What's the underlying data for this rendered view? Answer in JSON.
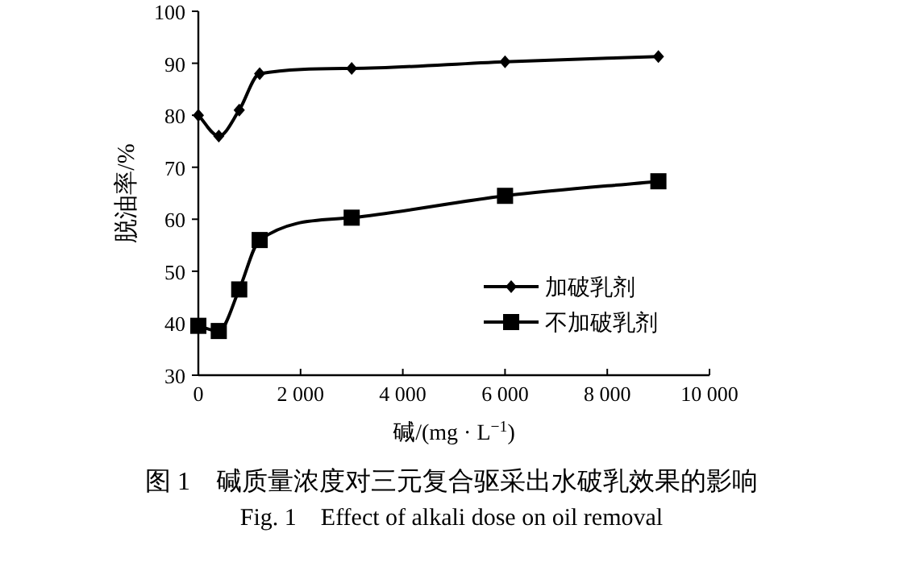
{
  "chart_data": {
    "type": "line",
    "xlabel": "碱/(mg · L$^{−1}$)",
    "ylabel": "脱油率/%",
    "x": [
      0,
      400,
      800,
      1200,
      3000,
      6000,
      9000
    ],
    "series": [
      {
        "name": "加破乳剂",
        "color": "#000000",
        "marker": "diamond",
        "values": [
          80,
          76,
          81,
          88,
          89,
          90.3,
          91.3
        ]
      },
      {
        "name": "不加破乳剂",
        "color": "#000000",
        "marker": "square",
        "values": [
          39.5,
          38.5,
          46.5,
          56,
          60.3,
          64.5,
          67.3
        ]
      }
    ],
    "xlim": [
      0,
      10000
    ],
    "xticks": [
      0,
      {
        "value": 2000,
        "label": "2 000"
      },
      {
        "value": 4000,
        "label": "4 000"
      },
      {
        "value": 6000,
        "label": "6 000"
      },
      {
        "value": 8000,
        "label": "8 000"
      },
      {
        "value": 10000,
        "label": "10 000"
      }
    ],
    "ylim": [
      30,
      100
    ],
    "yticks": [
      30,
      40,
      50,
      60,
      70,
      80,
      90,
      100
    ],
    "grid": false,
    "legend": "right",
    "line_style": "solid",
    "annotations": [
      "图 1　碱质量浓度对三元复合驱采出水破乳效果的影响",
      "Fig. 1　Effect of alkali dose on oil removal"
    ]
  }
}
